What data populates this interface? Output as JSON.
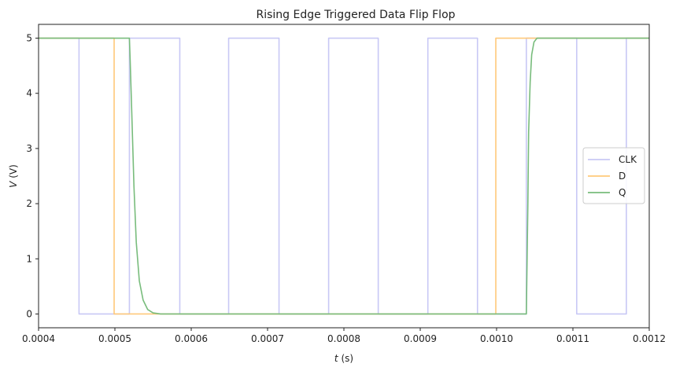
{
  "chart_data": {
    "type": "line",
    "title": "Rising Edge Triggered Data Flip Flop",
    "xlabel_var": "t",
    "xlabel_unit": "(s)",
    "ylabel_var": "V",
    "ylabel_unit": "(V)",
    "xlim": [
      0.0004,
      0.0012
    ],
    "ylim": [
      -0.25,
      5.25
    ],
    "x_ticks": [
      0.0004,
      0.0005,
      0.0006,
      0.0007,
      0.0008,
      0.0009,
      0.001,
      0.0011,
      0.0012
    ],
    "x_tick_labels": [
      "0.0004",
      "0.0005",
      "0.0006",
      "0.0007",
      "0.0008",
      "0.0009",
      "0.0010",
      "0.0011",
      "0.0012"
    ],
    "y_ticks": [
      0,
      1,
      2,
      3,
      4,
      5
    ],
    "y_tick_labels": [
      "0",
      "1",
      "2",
      "3",
      "4",
      "5"
    ],
    "grid": false,
    "legend_position": "center-right",
    "series": [
      {
        "name": "CLK",
        "color": "#c8c8f5",
        "points": [
          [
            0.0004,
            5
          ],
          [
            0.000453,
            5
          ],
          [
            0.000453,
            0
          ],
          [
            0.000519,
            0
          ],
          [
            0.000519,
            5
          ],
          [
            0.000585,
            5
          ],
          [
            0.000585,
            0
          ],
          [
            0.000649,
            0
          ],
          [
            0.000649,
            5
          ],
          [
            0.000715,
            5
          ],
          [
            0.000715,
            0
          ],
          [
            0.00078,
            0
          ],
          [
            0.00078,
            5
          ],
          [
            0.000845,
            5
          ],
          [
            0.000845,
            0
          ],
          [
            0.00091,
            0
          ],
          [
            0.00091,
            5
          ],
          [
            0.000975,
            5
          ],
          [
            0.000975,
            0
          ],
          [
            0.001039,
            0
          ],
          [
            0.001039,
            5
          ],
          [
            0.001105,
            5
          ],
          [
            0.001105,
            0
          ],
          [
            0.00117,
            0
          ],
          [
            0.00117,
            5
          ],
          [
            0.0012,
            5
          ]
        ]
      },
      {
        "name": "D",
        "color": "#ffc97a",
        "points": [
          [
            0.0004,
            5
          ],
          [
            0.000499,
            5
          ],
          [
            0.000499,
            0
          ],
          [
            0.000999,
            0
          ],
          [
            0.000999,
            5
          ],
          [
            0.0012,
            5
          ]
        ]
      },
      {
        "name": "Q",
        "color": "#78bc7c",
        "points": [
          [
            0.0004,
            5
          ],
          [
            0.000519,
            5
          ],
          [
            0.00052,
            4.6
          ],
          [
            0.000522,
            3.7
          ],
          [
            0.000525,
            2.3
          ],
          [
            0.000528,
            1.3
          ],
          [
            0.000532,
            0.6
          ],
          [
            0.000537,
            0.25
          ],
          [
            0.000543,
            0.08
          ],
          [
            0.00055,
            0.02
          ],
          [
            0.00056,
            0
          ],
          [
            0.001039,
            0
          ],
          [
            0.001041,
            2.0
          ],
          [
            0.001042,
            3.3
          ],
          [
            0.001044,
            4.2
          ],
          [
            0.001046,
            4.7
          ],
          [
            0.001049,
            4.93
          ],
          [
            0.001053,
            5
          ],
          [
            0.0012,
            5
          ]
        ]
      }
    ]
  }
}
